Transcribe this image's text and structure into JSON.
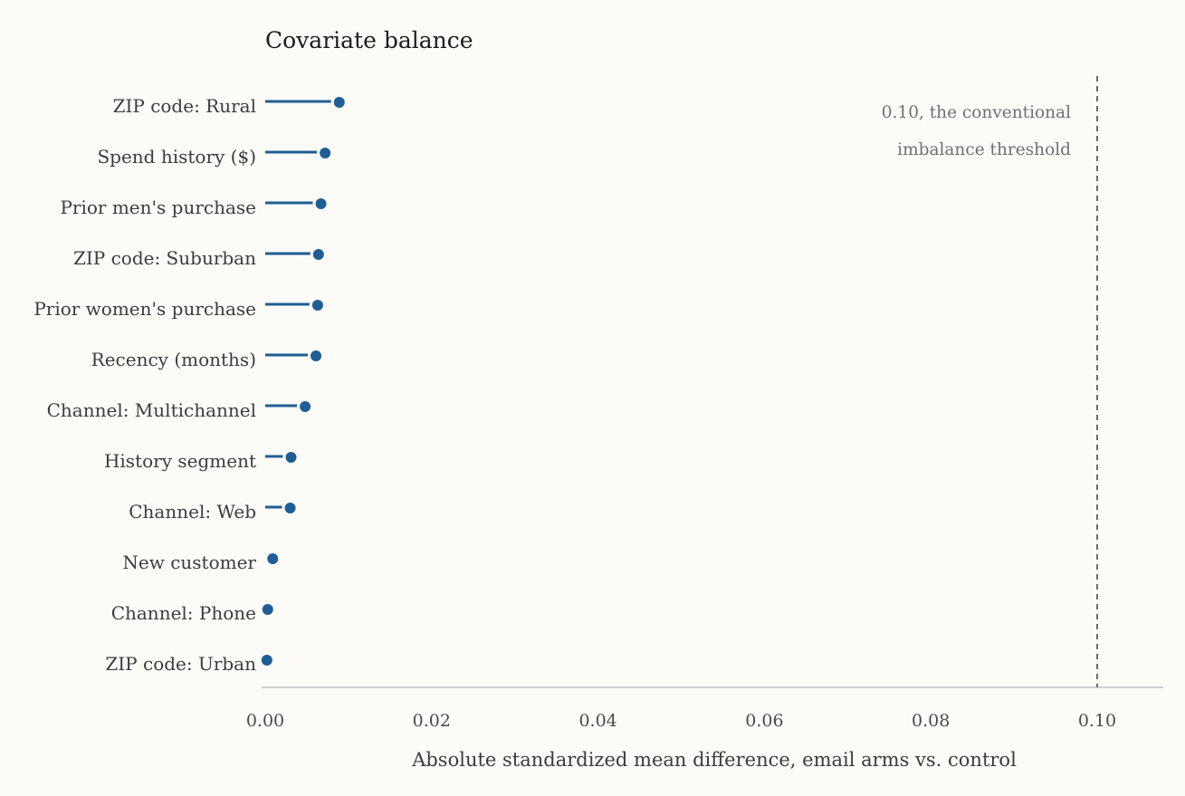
{
  "chart_data": {
    "type": "lollipop",
    "title": "Covariate balance",
    "xlabel": "Absolute standardized mean difference, email arms vs. control",
    "ylabel": "",
    "xlim": [
      0,
      0.108
    ],
    "x_ticks": [
      0.0,
      0.02,
      0.04,
      0.06,
      0.08,
      0.1
    ],
    "x_tick_labels": [
      "0.00",
      "0.02",
      "0.04",
      "0.06",
      "0.08",
      "0.10"
    ],
    "grid": false,
    "categories": [
      "ZIP code: Rural",
      "Spend history ($)",
      "Prior men's purchase",
      "ZIP code: Suburban",
      "Prior women's purchase",
      "Recency (months)",
      "Channel: Multichannel",
      "History segment",
      "Channel: Web",
      "New customer",
      "Channel: Phone",
      "ZIP code: Urban"
    ],
    "values": [
      0.0089,
      0.0072,
      0.0067,
      0.0064,
      0.0063,
      0.0061,
      0.0048,
      0.0031,
      0.003,
      0.0009,
      0.0003,
      0.0002
    ],
    "reference_line": {
      "x": 0.1,
      "style": "dashed",
      "label_lines": [
        "0.10, the conventional",
        "imbalance threshold"
      ]
    },
    "colors": {
      "series": "#1f5e94",
      "reference": "#6b6b6b",
      "axis": "#d0d0d0"
    }
  }
}
